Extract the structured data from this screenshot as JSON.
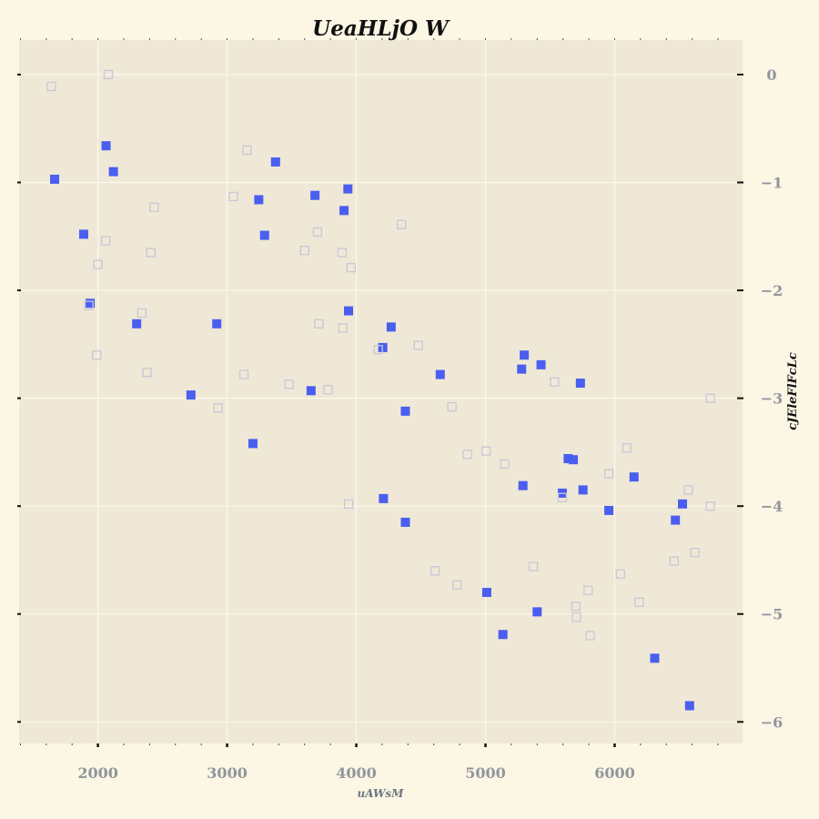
{
  "chart_data": {
    "type": "scatter",
    "title": "UeaHLjO W",
    "xlabel": "uAWsM",
    "ylabel": "cJEleFlFcLc",
    "xlim": [
      1390,
      6990
    ],
    "ylim": [
      -6.2,
      0.32
    ],
    "x_ticks": [
      2000,
      3000,
      4000,
      5000,
      6000
    ],
    "y_ticks": [
      0,
      -1,
      -2,
      -3,
      -4,
      -5,
      -6
    ],
    "x_tick_labels": [
      "2000",
      "3000",
      "4000",
      "5000",
      "6000"
    ],
    "y_tick_labels": [
      "0",
      "−1",
      "−2",
      "−3",
      "−4",
      "−5",
      "−6"
    ],
    "grid": true,
    "legend": "none",
    "colors": {
      "background": "#fcf6e4",
      "plot_background": "#efe8d6",
      "grid": "#fbf7ec",
      "series_filled": "#4a5ef0",
      "series_hollow": "#c9c7d6"
    },
    "series": [
      {
        "style": "filled-square",
        "color": "#4a5ef0",
        "points": [
          [
            1665,
            -0.97
          ],
          [
            2063,
            -0.66
          ],
          [
            2120,
            -0.9
          ],
          [
            1890,
            -1.48
          ],
          [
            1940,
            -2.12
          ],
          [
            2300,
            -2.31
          ],
          [
            2720,
            -2.97
          ],
          [
            2920,
            -2.31
          ],
          [
            3200,
            -3.42
          ],
          [
            3290,
            -1.49
          ],
          [
            3245,
            -1.16
          ],
          [
            3375,
            -0.81
          ],
          [
            3680,
            -1.12
          ],
          [
            3650,
            -2.93
          ],
          [
            3905,
            -1.26
          ],
          [
            3935,
            -1.06
          ],
          [
            3940,
            -2.19
          ],
          [
            4205,
            -2.53
          ],
          [
            4270,
            -2.34
          ],
          [
            4380,
            -3.12
          ],
          [
            4210,
            -3.93
          ],
          [
            4380,
            -4.15
          ],
          [
            4650,
            -2.78
          ],
          [
            5010,
            -4.8
          ],
          [
            5135,
            -5.19
          ],
          [
            5300,
            -2.6
          ],
          [
            5280,
            -2.73
          ],
          [
            5290,
            -3.81
          ],
          [
            5400,
            -4.98
          ],
          [
            5430,
            -2.69
          ],
          [
            5595,
            -3.88
          ],
          [
            5640,
            -3.56
          ],
          [
            5680,
            -3.57
          ],
          [
            5735,
            -2.86
          ],
          [
            5755,
            -3.85
          ],
          [
            5955,
            -4.04
          ],
          [
            6150,
            -3.73
          ],
          [
            6310,
            -5.41
          ],
          [
            6470,
            -4.13
          ],
          [
            6525,
            -3.98
          ],
          [
            6580,
            -5.85
          ]
        ]
      },
      {
        "style": "hollow-square",
        "color": "#c9c7d6",
        "points": [
          [
            1640,
            -0.11
          ],
          [
            2080,
            0.0
          ],
          [
            1930,
            -2.14
          ],
          [
            1990,
            -2.6
          ],
          [
            2000,
            -1.76
          ],
          [
            2060,
            -1.54
          ],
          [
            2340,
            -2.21
          ],
          [
            2380,
            -2.76
          ],
          [
            2410,
            -1.65
          ],
          [
            2435,
            -1.23
          ],
          [
            2930,
            -3.09
          ],
          [
            3050,
            -1.13
          ],
          [
            3130,
            -2.78
          ],
          [
            3155,
            -0.7
          ],
          [
            3480,
            -2.87
          ],
          [
            3600,
            -1.63
          ],
          [
            3700,
            -1.46
          ],
          [
            3710,
            -2.31
          ],
          [
            3780,
            -2.92
          ],
          [
            3890,
            -1.65
          ],
          [
            3895,
            -2.35
          ],
          [
            3960,
            -1.79
          ],
          [
            3940,
            -3.98
          ],
          [
            4170,
            -2.55
          ],
          [
            4350,
            -1.39
          ],
          [
            4480,
            -2.51
          ],
          [
            4610,
            -4.6
          ],
          [
            4740,
            -3.08
          ],
          [
            4780,
            -4.73
          ],
          [
            4860,
            -3.52
          ],
          [
            5005,
            -3.49
          ],
          [
            5150,
            -3.61
          ],
          [
            5370,
            -4.56
          ],
          [
            5535,
            -2.85
          ],
          [
            5595,
            -3.92
          ],
          [
            5700,
            -4.93
          ],
          [
            5705,
            -5.03
          ],
          [
            5795,
            -4.78
          ],
          [
            5810,
            -5.2
          ],
          [
            5955,
            -3.7
          ],
          [
            6045,
            -4.63
          ],
          [
            6095,
            -3.46
          ],
          [
            6190,
            -4.89
          ],
          [
            6460,
            -4.51
          ],
          [
            6570,
            -3.85
          ],
          [
            6620,
            -4.43
          ],
          [
            6740,
            -3.0
          ],
          [
            6740,
            -4.0
          ]
        ]
      }
    ]
  }
}
